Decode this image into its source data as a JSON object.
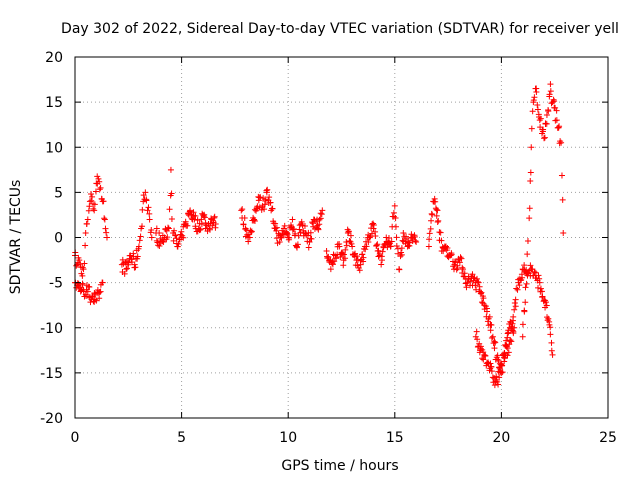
{
  "chart_data": {
    "type": "scatter",
    "title": "Day 302 of 2022, Sidereal Day-to-day VTEC variation (SDTVAR) for receiver yell",
    "xlabel": "GPS time / hours",
    "ylabel": "SDTVAR / TECUs",
    "xlim": [
      0,
      25
    ],
    "ylim": [
      -20,
      20
    ],
    "xticks": [
      0,
      5,
      10,
      15,
      20,
      25
    ],
    "yticks": [
      -20,
      -15,
      -10,
      -5,
      0,
      5,
      10,
      15,
      20
    ],
    "grid": true,
    "marker": "+",
    "color": "#ff0000",
    "segments": [
      [
        [
          0.0,
          -2.0
        ],
        [
          0.1,
          -3.0
        ],
        [
          0.2,
          -2.5
        ],
        [
          0.3,
          -4.0
        ],
        [
          0.4,
          -3.5
        ],
        [
          0.5,
          0.5
        ],
        [
          0.6,
          2.0
        ],
        [
          0.7,
          4.0
        ],
        [
          0.8,
          4.5
        ],
        [
          0.9,
          3.0
        ],
        [
          1.0,
          6.0
        ],
        [
          1.1,
          6.5
        ],
        [
          1.2,
          5.5
        ],
        [
          1.3,
          4.0
        ],
        [
          1.4,
          2.0
        ],
        [
          1.5,
          0.0
        ]
      ],
      [
        [
          0.0,
          -5.0
        ],
        [
          0.2,
          -5.5
        ],
        [
          0.4,
          -5.8
        ],
        [
          0.6,
          -6.0
        ],
        [
          0.8,
          -6.5
        ],
        [
          1.0,
          -7.0
        ],
        [
          1.2,
          -6.0
        ],
        [
          1.3,
          -5.0
        ]
      ],
      [
        [
          2.2,
          -3.0
        ],
        [
          2.4,
          -3.5
        ],
        [
          2.6,
          -2.0
        ],
        [
          2.8,
          -3.0
        ],
        [
          3.0,
          -1.0
        ],
        [
          3.1,
          1.0
        ],
        [
          3.2,
          4.0
        ],
        [
          3.3,
          5.0
        ],
        [
          3.4,
          3.0
        ],
        [
          3.5,
          2.0
        ],
        [
          3.6,
          0.0
        ]
      ],
      [
        [
          3.8,
          0.5
        ],
        [
          4.0,
          -0.5
        ],
        [
          4.2,
          0.0
        ],
        [
          4.4,
          1.0
        ],
        [
          4.5,
          7.5
        ],
        [
          4.6,
          0.5
        ],
        [
          4.8,
          -1.0
        ],
        [
          5.0,
          0.0
        ],
        [
          5.2,
          1.5
        ],
        [
          5.4,
          3.0
        ],
        [
          5.6,
          2.0
        ],
        [
          5.8,
          1.0
        ],
        [
          6.0,
          2.5
        ],
        [
          6.2,
          1.0
        ],
        [
          6.4,
          2.0
        ],
        [
          6.6,
          1.5
        ]
      ],
      [
        [
          7.8,
          3.0
        ],
        [
          8.0,
          1.0
        ],
        [
          8.2,
          0.0
        ],
        [
          8.4,
          2.0
        ],
        [
          8.6,
          4.5
        ],
        [
          8.8,
          3.5
        ],
        [
          9.0,
          5.0
        ],
        [
          9.2,
          3.0
        ],
        [
          9.4,
          1.0
        ],
        [
          9.6,
          -0.5
        ],
        [
          9.8,
          1.0
        ],
        [
          10.0,
          0.0
        ],
        [
          10.2,
          2.0
        ],
        [
          10.4,
          -1.0
        ],
        [
          10.6,
          1.5
        ],
        [
          10.8,
          0.5
        ],
        [
          11.0,
          -0.5
        ],
        [
          11.2,
          2.0
        ],
        [
          11.4,
          1.0
        ],
        [
          11.6,
          3.0
        ]
      ],
      [
        [
          11.8,
          -1.5
        ],
        [
          12.0,
          -3.5
        ],
        [
          12.2,
          -2.0
        ],
        [
          12.4,
          -1.0
        ],
        [
          12.6,
          -2.5
        ],
        [
          12.8,
          0.5
        ],
        [
          13.0,
          -1.0
        ],
        [
          13.2,
          -2.5
        ],
        [
          13.4,
          -3.0
        ],
        [
          13.6,
          -1.0
        ],
        [
          13.8,
          0.0
        ],
        [
          14.0,
          1.0
        ],
        [
          14.2,
          -1.5
        ],
        [
          14.4,
          -2.5
        ],
        [
          14.6,
          0.0
        ],
        [
          14.8,
          -1.0
        ],
        [
          15.0,
          3.5
        ],
        [
          15.2,
          -3.5
        ],
        [
          15.4,
          0.5
        ],
        [
          15.6,
          -1.0
        ],
        [
          15.8,
          0.0
        ],
        [
          16.0,
          -0.5
        ]
      ],
      [
        [
          16.6,
          -1.0
        ],
        [
          16.8,
          4.0
        ],
        [
          17.0,
          3.0
        ],
        [
          17.2,
          -1.5
        ],
        [
          17.4,
          -1.0
        ],
        [
          17.6,
          -2.0
        ],
        [
          17.8,
          -3.0
        ],
        [
          18.0,
          -2.5
        ],
        [
          18.2,
          -3.5
        ],
        [
          18.4,
          -5.0
        ],
        [
          18.6,
          -4.5
        ],
        [
          18.8,
          -5.0
        ],
        [
          19.0,
          -6.0
        ],
        [
          19.2,
          -7.5
        ],
        [
          19.4,
          -9.0
        ],
        [
          19.6,
          -11.0
        ],
        [
          19.8,
          -13.5
        ],
        [
          20.0,
          -15.0
        ],
        [
          20.2,
          -12.0
        ],
        [
          20.4,
          -10.0
        ],
        [
          20.6,
          -8.0
        ],
        [
          20.8,
          -5.0
        ],
        [
          21.0,
          -3.5
        ],
        [
          21.2,
          -4.0
        ],
        [
          21.4,
          -3.5
        ],
        [
          21.6,
          -4.5
        ],
        [
          21.8,
          -5.0
        ],
        [
          22.0,
          -7.0
        ],
        [
          22.2,
          -9.0
        ],
        [
          22.4,
          -13.0
        ]
      ],
      [
        [
          18.8,
          -11.0
        ],
        [
          19.0,
          -12.5
        ],
        [
          19.2,
          -13.0
        ],
        [
          19.4,
          -14.0
        ],
        [
          19.6,
          -15.5
        ],
        [
          19.8,
          -16.0
        ],
        [
          20.0,
          -14.0
        ],
        [
          20.2,
          -13.0
        ],
        [
          20.4,
          -11.5
        ],
        [
          20.6,
          -10.0
        ]
      ],
      [
        [
          21.0,
          -11.0
        ],
        [
          21.2,
          -4.0
        ],
        [
          21.4,
          10.0
        ],
        [
          21.5,
          15.0
        ],
        [
          21.6,
          16.5
        ],
        [
          21.8,
          13.0
        ],
        [
          22.0,
          11.0
        ],
        [
          22.2,
          14.0
        ],
        [
          22.3,
          17.0
        ],
        [
          22.4,
          15.0
        ],
        [
          22.6,
          13.0
        ],
        [
          22.8,
          10.5
        ],
        [
          22.9,
          0.5
        ]
      ]
    ]
  }
}
